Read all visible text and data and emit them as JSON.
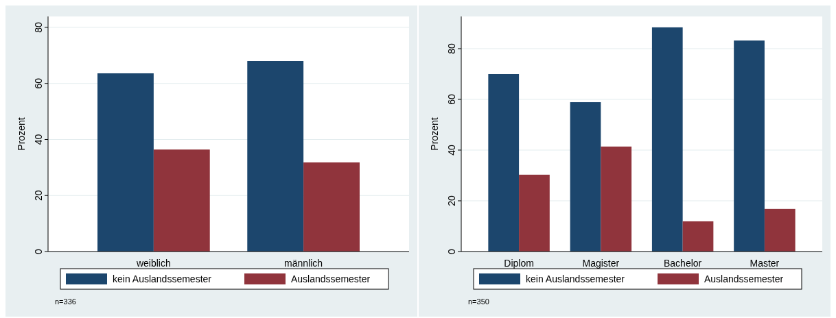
{
  "chart_data": [
    {
      "type": "bar",
      "categories": [
        "weiblich",
        "männlich"
      ],
      "ylabel": "Prozent",
      "ylim": [
        0,
        83.9
      ],
      "yticks": [
        0,
        20,
        40,
        60,
        80
      ],
      "grid": "y",
      "legend": "bottom",
      "annotations": [
        "n=336"
      ],
      "series": [
        {
          "name": "kein Auslandssemester",
          "color": "#1c466d",
          "values": [
            63.6,
            68.0
          ]
        },
        {
          "name": "Auslandssemester",
          "color": "#90343c",
          "values": [
            36.4,
            31.8
          ]
        }
      ]
    },
    {
      "type": "bar",
      "categories": [
        "Diplom",
        "Magister",
        "Bachelor",
        "Master"
      ],
      "ylabel": "Prozent",
      "ylim": [
        0,
        92.7
      ],
      "yticks": [
        0,
        20,
        40,
        60,
        80
      ],
      "grid": "y",
      "legend": "bottom",
      "annotations": [
        "n=350"
      ],
      "series": [
        {
          "name": "kein Auslandssemester",
          "color": "#1c466d",
          "values": [
            70.0,
            58.9,
            88.4,
            83.2
          ]
        },
        {
          "name": "Auslandssemester",
          "color": "#90343c",
          "values": [
            30.3,
            41.4,
            11.9,
            16.8
          ]
        }
      ]
    }
  ]
}
